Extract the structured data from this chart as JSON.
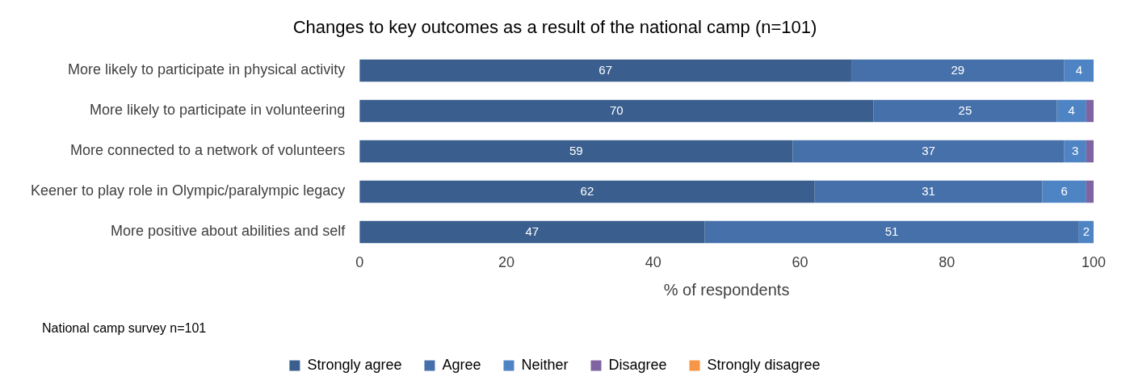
{
  "chart_data": {
    "type": "bar",
    "orientation": "horizontal",
    "stacked": true,
    "title": "Changes to key outcomes as a result of the national camp (n=101)",
    "xlabel": "% of respondents",
    "categories": [
      "More likely to participate in physical activity",
      "More likely to participate in volunteering",
      "More connected to a network of volunteers",
      "Keener to play role in Olympic/paralympic legacy",
      "More positive about abilities and self"
    ],
    "series": [
      {
        "name": "Strongly agree",
        "color": "#3a5f8e",
        "values": [
          67,
          70,
          59,
          62,
          47
        ],
        "value_labels": [
          "67",
          "70",
          "59",
          "62",
          "47"
        ]
      },
      {
        "name": "Agree",
        "color": "#4670aa",
        "values": [
          29,
          25,
          37,
          31,
          51
        ],
        "value_labels": [
          "29",
          "25",
          "37",
          "31",
          "51"
        ]
      },
      {
        "name": "Neither",
        "color": "#4f84c4",
        "values": [
          4,
          4,
          3,
          6,
          2
        ],
        "value_labels": [
          "4",
          "4",
          "3",
          "6",
          "2"
        ]
      },
      {
        "name": "Disagree",
        "color": "#8064a2",
        "values": [
          0,
          1,
          1,
          1,
          0
        ],
        "value_labels": [
          null,
          null,
          null,
          null,
          null
        ]
      },
      {
        "name": "Strongly disagree",
        "color": "#f79646",
        "values": [
          0,
          0,
          0,
          0,
          0
        ],
        "value_labels": [
          null,
          null,
          null,
          null,
          null
        ]
      }
    ],
    "xlim": [
      0,
      100
    ],
    "xticks": [
      0,
      20,
      40,
      60,
      80,
      100
    ],
    "grid": false,
    "legend": "bottom",
    "annotations": [
      "National camp survey n=101"
    ]
  }
}
